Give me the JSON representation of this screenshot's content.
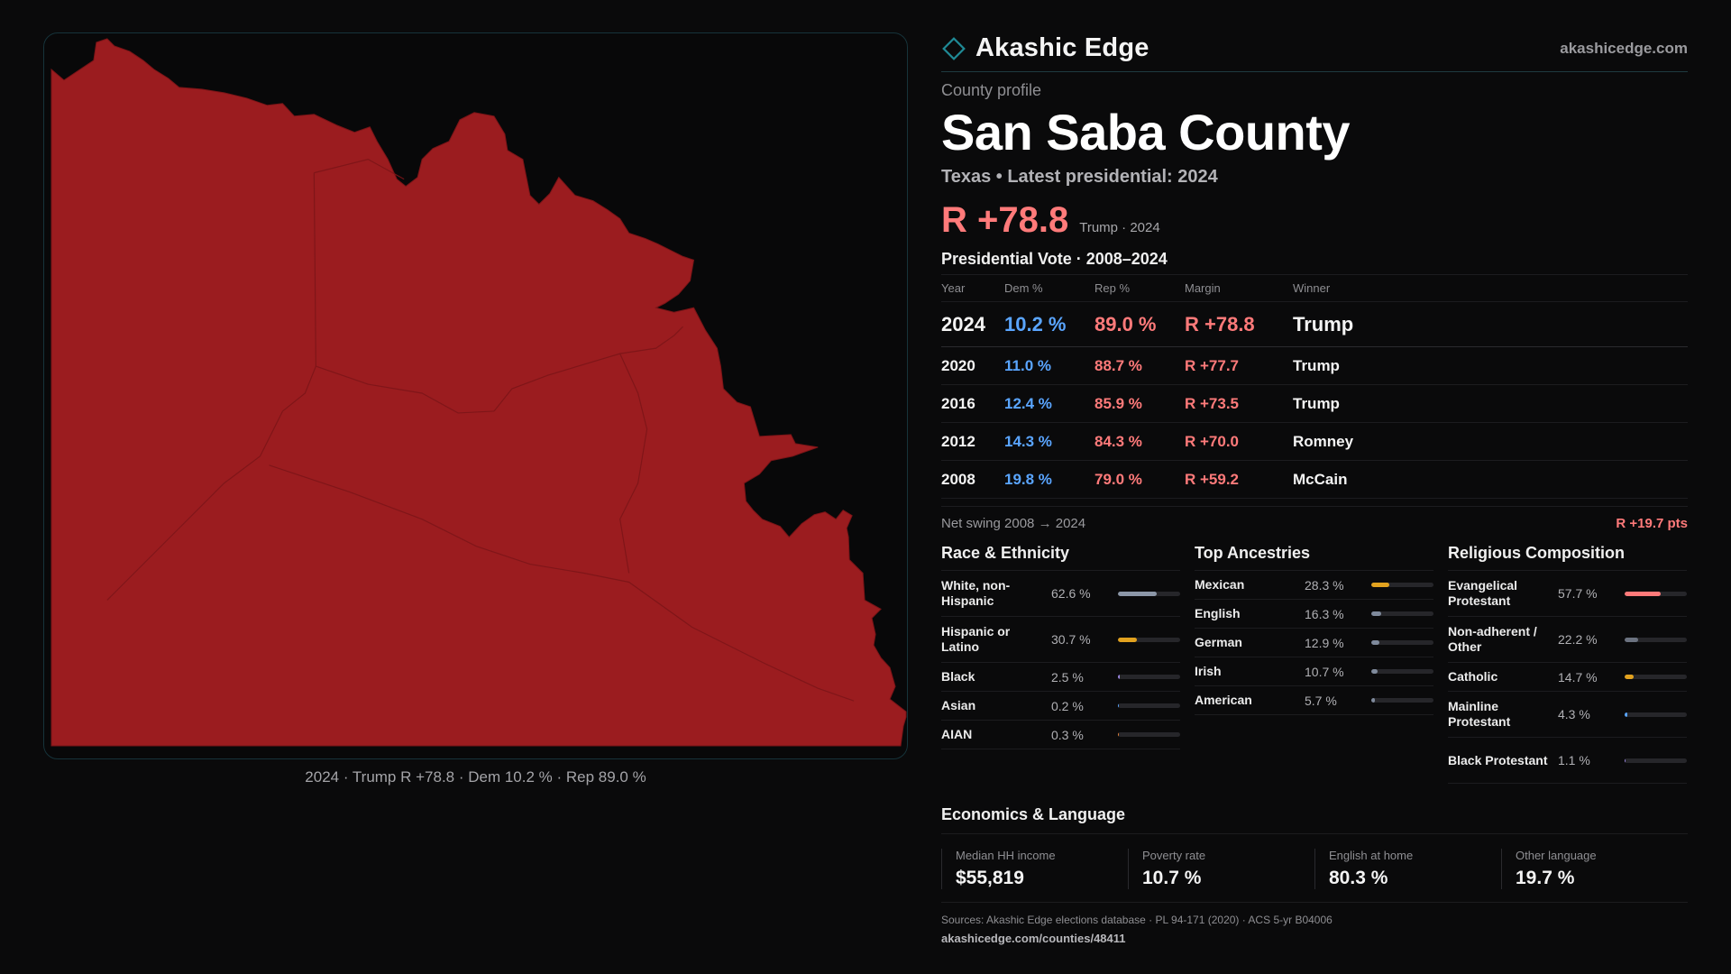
{
  "map": {
    "county_fill": "#9b1c1f",
    "caption": "2024 · Trump R +78.8 · Dem 10.2 % · Rep 89.0 %"
  },
  "brand": {
    "name": "Akashic Edge",
    "url": "akashicedge.com",
    "logo_icon": "diamond-outline-icon",
    "accent": "#1f8a96"
  },
  "profile": {
    "kicker": "County profile",
    "county": "San Saba County",
    "subline": "Texas • Latest presidential: 2024",
    "margin": "R +78.8",
    "margin_note": "Trump · 2024"
  },
  "votes": {
    "title": "Presidential Vote · 2008–2024",
    "headers": [
      "Year",
      "Dem %",
      "Rep %",
      "Margin",
      "Winner"
    ],
    "rows": [
      {
        "year": "2024",
        "dem": "10.2 %",
        "rep": "89.0 %",
        "margin": "R +78.8",
        "winner": "Trump"
      },
      {
        "year": "2020",
        "dem": "11.0 %",
        "rep": "88.7 %",
        "margin": "R +77.7",
        "winner": "Trump"
      },
      {
        "year": "2016",
        "dem": "12.4 %",
        "rep": "85.9 %",
        "margin": "R +73.5",
        "winner": "Trump"
      },
      {
        "year": "2012",
        "dem": "14.3 %",
        "rep": "84.3 %",
        "margin": "R +70.0",
        "winner": "Romney"
      },
      {
        "year": "2008",
        "dem": "19.8 %",
        "rep": "79.0 %",
        "margin": "R +59.2",
        "winner": "McCain"
      }
    ],
    "swing_label": "Net swing 2008 → 2024",
    "swing_value": "R +19.7 pts"
  },
  "race": {
    "title": "Race & Ethnicity",
    "items": [
      {
        "label": "White, non-Hispanic",
        "pct": "62.6 %",
        "value": 62.6,
        "color": "#8c97a8"
      },
      {
        "label": "Hispanic or Latino",
        "pct": "30.7 %",
        "value": 30.7,
        "color": "#e2a21f"
      },
      {
        "label": "Black",
        "pct": "2.5 %",
        "value": 2.5,
        "color": "#9a86e0"
      },
      {
        "label": "Asian",
        "pct": "0.2 %",
        "value": 0.2,
        "color": "#5aa5ff"
      },
      {
        "label": "AIAN",
        "pct": "0.3 %",
        "value": 0.3,
        "color": "#e2803a"
      }
    ]
  },
  "ancestry": {
    "title": "Top Ancestries",
    "items": [
      {
        "label": "Mexican",
        "pct": "28.3 %",
        "value": 28.3,
        "color": "#e2a21f"
      },
      {
        "label": "English",
        "pct": "16.3 %",
        "value": 16.3,
        "color": "#7f8a9c"
      },
      {
        "label": "German",
        "pct": "12.9 %",
        "value": 12.9,
        "color": "#7f8a9c"
      },
      {
        "label": "Irish",
        "pct": "10.7 %",
        "value": 10.7,
        "color": "#7f8a9c"
      },
      {
        "label": "American",
        "pct": "5.7 %",
        "value": 5.7,
        "color": "#7f8a9c"
      }
    ]
  },
  "religion": {
    "title": "Religious Composition",
    "items": [
      {
        "label": "Evangelical Protestant",
        "pct": "57.7 %",
        "value": 57.7,
        "color": "#ff7a7a"
      },
      {
        "label": "Non-adherent / Other",
        "pct": "22.2 %",
        "value": 22.2,
        "color": "#6b7280"
      },
      {
        "label": "Catholic",
        "pct": "14.7 %",
        "value": 14.7,
        "color": "#e2a21f"
      },
      {
        "label": "Mainline Protestant",
        "pct": "4.3 %",
        "value": 4.3,
        "color": "#5aa5ff"
      },
      {
        "label": "Black Protestant",
        "pct": "1.1 %",
        "value": 1.1,
        "color": "#9a86e0"
      }
    ]
  },
  "economics": {
    "title": "Economics & Language",
    "cells": [
      {
        "label": "Median HH income",
        "value": "$55,819"
      },
      {
        "label": "Poverty rate",
        "value": "10.7 %"
      },
      {
        "label": "English at home",
        "value": "80.3 %"
      },
      {
        "label": "Other language",
        "value": "19.7 %"
      }
    ]
  },
  "sources": {
    "text": "Sources: Akashic Edge elections database · PL 94-171 (2020) · ACS 5-yr B04006",
    "url": "akashicedge.com/counties/48411"
  }
}
